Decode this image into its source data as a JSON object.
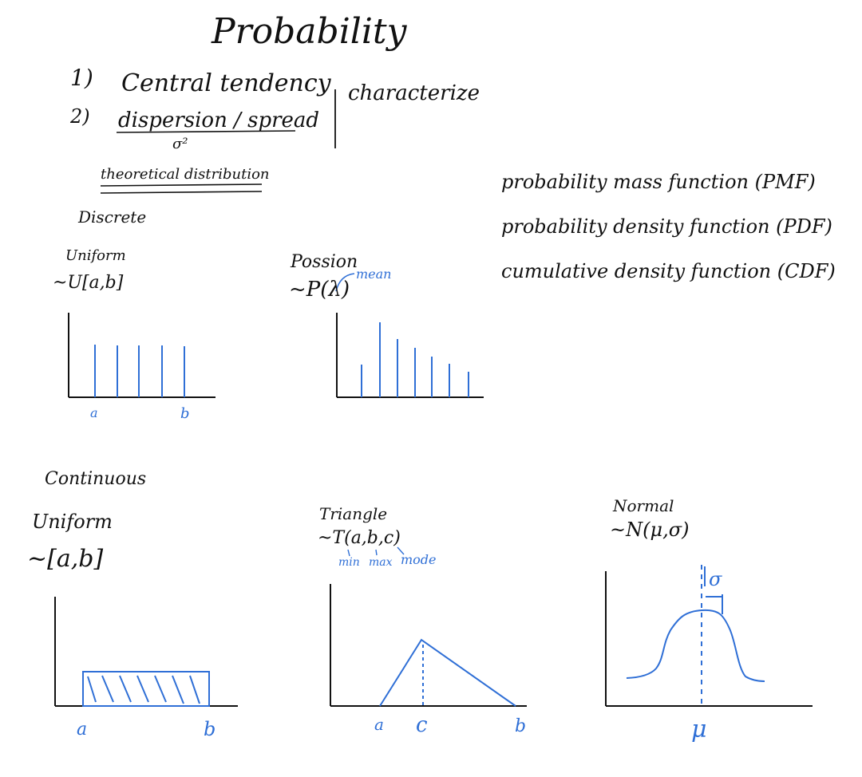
{
  "title": "Probability",
  "colors": {
    "ink": "#111111",
    "accent": "#2f6fd6"
  },
  "notes": {
    "item1": "1)",
    "item1_text": "Central tendency",
    "item2": "2)",
    "item2_text": "dispersion / spread",
    "sigma2": "σ²",
    "bracket_label": "characterize",
    "theoretical": "theoretical distribution"
  },
  "functions": [
    "probability mass function (PMF)",
    "probability density function (PDF)",
    "cumulative density function (CDF)"
  ],
  "discrete": {
    "heading": "Discrete",
    "uniform": {
      "name": "Uniform",
      "notation": "~U[a,b]",
      "label_a": "a",
      "label_b": "b"
    },
    "poisson": {
      "name": "Possion",
      "notation": "~P(λ)",
      "annotation": "mean"
    }
  },
  "continuous": {
    "heading": "Continuous",
    "uniform": {
      "name": "Uniform",
      "notation": "~[a,b]",
      "label_a": "a",
      "label_b": "b"
    },
    "triangle": {
      "name": "Triangle",
      "notation": "~T(a,b,c)",
      "sub_min": "min",
      "sub_max": "max",
      "sub_mode": "mode",
      "label_a": "a",
      "label_c": "c",
      "label_b": "b"
    },
    "normal": {
      "name": "Normal",
      "notation": "~N(μ,σ)",
      "sigma": "σ",
      "mu": "μ"
    }
  }
}
